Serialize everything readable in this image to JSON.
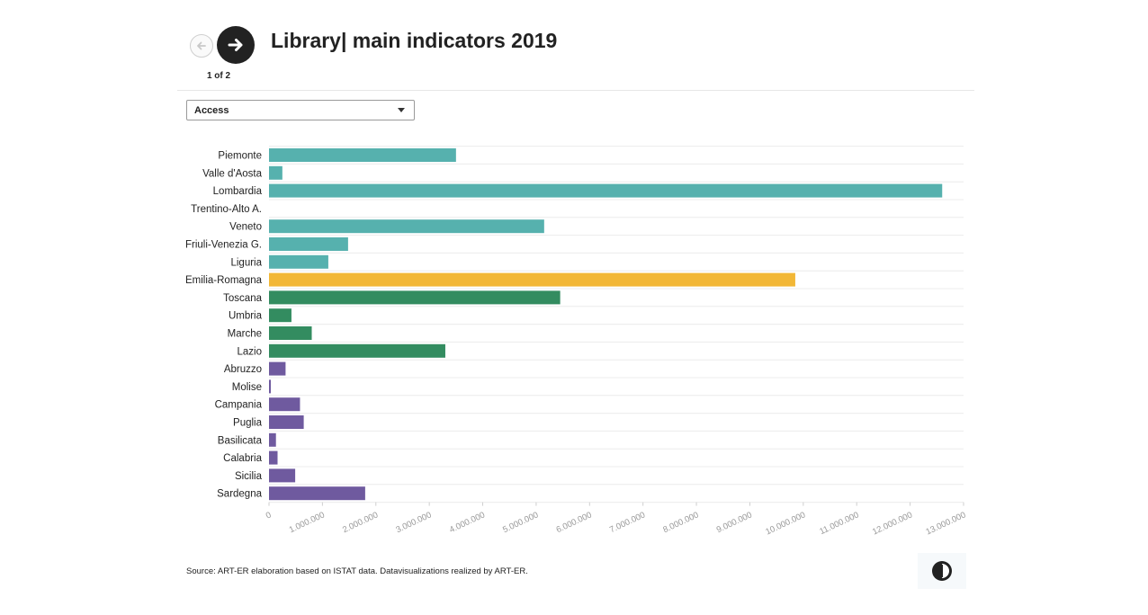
{
  "header": {
    "title": "Library| main indicators 2019",
    "pager": "1 of 2"
  },
  "dropdown": {
    "selected": "Access"
  },
  "footer": {
    "source": "Source: ART-ER elaboration based on ISTAT data. Datavisualizations realized by ART-ER."
  },
  "icons": {
    "prev": "arrow-left-icon",
    "next": "arrow-right-icon",
    "caret": "chevron-down-icon",
    "logo": "art-er-logo-icon"
  },
  "colors": {
    "north": "#56b1ae",
    "emilia_romagna": "#f2b736",
    "center": "#338c60",
    "south": "#6f5a9f"
  },
  "chart_data": {
    "type": "bar",
    "orientation": "horizontal",
    "categories": [
      "Piemonte",
      "Valle d'Aosta",
      "Lombardia",
      "Trentino-Alto A.",
      "Veneto",
      "Friuli-Venezia G.",
      "Liguria",
      "Emilia-Romagna",
      "Toscana",
      "Umbria",
      "Marche",
      "Lazio",
      "Abruzzo",
      "Molise",
      "Campania",
      "Puglia",
      "Basilicata",
      "Calabria",
      "Sicilia",
      "Sardegna"
    ],
    "values": [
      3500000,
      250000,
      12600000,
      0,
      5150000,
      1480000,
      1110000,
      9850000,
      5450000,
      420000,
      800000,
      3300000,
      310000,
      30000,
      580000,
      650000,
      130000,
      160000,
      490000,
      1800000
    ],
    "bar_colors": [
      "#56b1ae",
      "#56b1ae",
      "#56b1ae",
      "#56b1ae",
      "#56b1ae",
      "#56b1ae",
      "#56b1ae",
      "#f2b736",
      "#338c60",
      "#338c60",
      "#338c60",
      "#338c60",
      "#6f5a9f",
      "#6f5a9f",
      "#6f5a9f",
      "#6f5a9f",
      "#6f5a9f",
      "#6f5a9f",
      "#6f5a9f",
      "#6f5a9f"
    ],
    "x_ticks": [
      0,
      1000000,
      2000000,
      3000000,
      4000000,
      5000000,
      6000000,
      7000000,
      8000000,
      9000000,
      10000000,
      11000000,
      12000000,
      13000000
    ],
    "x_tick_labels": [
      "0",
      "1.000.000",
      "2.000.000",
      "3.000.000",
      "4.000.000",
      "5.000.000",
      "6.000.000",
      "7.000.000",
      "8.000.000",
      "9.000.000",
      "10.000.000",
      "11.000.000",
      "12.000.000",
      "13.000.000"
    ],
    "xlim": [
      0,
      13000000
    ],
    "grid": true,
    "legend": "none"
  }
}
